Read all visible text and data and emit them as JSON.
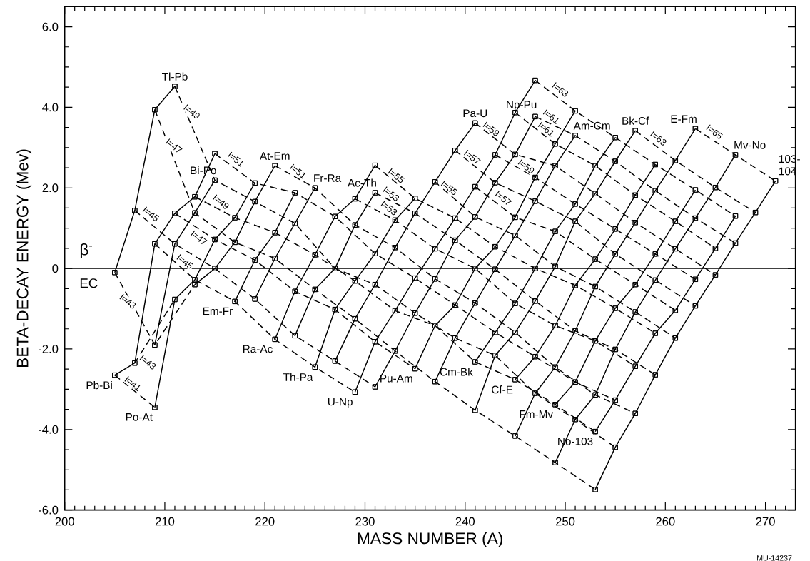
{
  "chart_data": {
    "type": "line",
    "color": "#000000",
    "marker": "square",
    "line_style": "solid",
    "xlabel": "MASS NUMBER (A)",
    "ylabel": "BETA-DECAY ENERGY (Mev)",
    "xlim": [
      200,
      273
    ],
    "ylim": [
      -6.0,
      6.5
    ],
    "xticks": [
      200,
      210,
      220,
      230,
      240,
      250,
      260,
      270,
      {
        "value": 201,
        "label": null
      },
      {
        "value": 202,
        "label": null
      },
      {
        "value": 203,
        "label": null
      },
      {
        "value": 204,
        "label": null
      },
      {
        "value": 205,
        "label": null
      },
      {
        "value": 206,
        "label": null
      },
      {
        "value": 207,
        "label": null
      },
      {
        "value": 208,
        "label": null
      },
      {
        "value": 209,
        "label": null
      },
      {
        "value": 211,
        "label": null
      },
      {
        "value": 212,
        "label": null
      },
      {
        "value": 213,
        "label": null
      },
      {
        "value": 214,
        "label": null
      },
      {
        "value": 215,
        "label": null
      },
      {
        "value": 216,
        "label": null
      },
      {
        "value": 217,
        "label": null
      },
      {
        "value": 218,
        "label": null
      },
      {
        "value": 219,
        "label": null
      },
      {
        "value": 221,
        "label": null
      },
      {
        "value": 222,
        "label": null
      },
      {
        "value": 223,
        "label": null
      },
      {
        "value": 224,
        "label": null
      },
      {
        "value": 225,
        "label": null
      },
      {
        "value": 226,
        "label": null
      },
      {
        "value": 227,
        "label": null
      },
      {
        "value": 228,
        "label": null
      },
      {
        "value": 229,
        "label": null
      },
      {
        "value": 231,
        "label": null
      },
      {
        "value": 232,
        "label": null
      },
      {
        "value": 233,
        "label": null
      },
      {
        "value": 234,
        "label": null
      },
      {
        "value": 235,
        "label": null
      },
      {
        "value": 236,
        "label": null
      },
      {
        "value": 237,
        "label": null
      },
      {
        "value": 238,
        "label": null
      },
      {
        "value": 239,
        "label": null
      },
      {
        "value": 241,
        "label": null
      },
      {
        "value": 242,
        "label": null
      },
      {
        "value": 243,
        "label": null
      },
      {
        "value": 244,
        "label": null
      },
      {
        "value": 245,
        "label": null
      },
      {
        "value": 246,
        "label": null
      },
      {
        "value": 247,
        "label": null
      },
      {
        "value": 248,
        "label": null
      },
      {
        "value": 249,
        "label": null
      },
      {
        "value": 251,
        "label": null
      },
      {
        "value": 252,
        "label": null
      },
      {
        "value": 253,
        "label": null
      },
      {
        "value": 254,
        "label": null
      },
      {
        "value": 255,
        "label": null
      },
      {
        "value": 256,
        "label": null
      },
      {
        "value": 257,
        "label": null
      },
      {
        "value": 258,
        "label": null
      },
      {
        "value": 259,
        "label": null
      },
      {
        "value": 261,
        "label": null
      },
      {
        "value": 262,
        "label": null
      },
      {
        "value": 263,
        "label": null
      },
      {
        "value": 264,
        "label": null
      },
      {
        "value": 265,
        "label": null
      },
      {
        "value": 266,
        "label": null
      },
      {
        "value": 267,
        "label": null
      },
      {
        "value": 268,
        "label": null
      },
      {
        "value": 269,
        "label": null
      },
      {
        "value": 271,
        "label": null
      },
      {
        "value": 272,
        "label": null
      }
    ],
    "yticks": [
      {
        "value": -6,
        "label": "-6.0"
      },
      {
        "value": -4,
        "label": "-4.0"
      },
      {
        "value": -2,
        "label": "-2.0"
      },
      0,
      {
        "value": 2,
        "label": "2.0"
      },
      {
        "value": 4,
        "label": "4.0"
      },
      {
        "value": 6,
        "label": "6.0"
      },
      {
        "value": -5.5,
        "label": null
      },
      {
        "value": -5,
        "label": null
      },
      {
        "value": -4.5,
        "label": null
      },
      {
        "value": -3.5,
        "label": null
      },
      {
        "value": -3,
        "label": null
      },
      {
        "value": -2.5,
        "label": null
      },
      {
        "value": -1.5,
        "label": null
      },
      {
        "value": -1,
        "label": null
      },
      {
        "value": -0.5,
        "label": null
      },
      {
        "value": 0.5,
        "label": null
      },
      {
        "value": 1,
        "label": null
      },
      {
        "value": 1.5,
        "label": null
      },
      {
        "value": 2.5,
        "label": null
      },
      {
        "value": 3,
        "label": null
      },
      {
        "value": 3.5,
        "label": null
      },
      {
        "value": 4.5,
        "label": null
      },
      {
        "value": 5,
        "label": null
      },
      {
        "value": 5.5,
        "label": null
      }
    ],
    "ref_lines": [
      {
        "axis": "y",
        "value": 0
      }
    ],
    "series": [
      {
        "x": [
          205,
          209
        ],
        "values": [
          -2.65,
          -3.45
        ],
        "line_style": "dashed"
      },
      {
        "x": [
          207,
          211
        ],
        "values": [
          -2.35,
          -0.77
        ],
        "line_style": "dashed"
      },
      {
        "x": [
          209,
          213,
          217,
          221,
          225,
          229
        ],
        "values": [
          0.61,
          -0.28,
          -0.82,
          -1.76,
          -2.45,
          -3.07
        ],
        "line_style": "dashed"
      },
      {
        "x": [
          211,
          215,
          219,
          223,
          227,
          231,
          235
        ],
        "values": [
          1.37,
          0.72,
          0.21,
          -0.57,
          -1.02,
          -1.82,
          -2.49
        ],
        "line_style": "dashed"
      },
      {
        "x": [
          213,
          217,
          221,
          225,
          229,
          233,
          237,
          241,
          245,
          249,
          253
        ],
        "values": [
          1.78,
          1.26,
          0.89,
          0.34,
          -0.31,
          -1.05,
          -1.42,
          -2.32,
          -2.76,
          -3.38,
          -4.05
        ],
        "line_style": "dashed"
      },
      {
        "x": [
          215,
          219,
          223,
          227,
          231,
          235,
          239,
          243,
          247,
          251,
          255
        ],
        "values": [
          2.85,
          2.12,
          1.88,
          1.29,
          0.37,
          -0.24,
          -0.91,
          -1.59,
          -2.19,
          -2.82,
          -3.27
        ],
        "line_style": "dashed"
      },
      {
        "x": [
          229,
          233,
          237,
          241,
          245,
          249,
          253,
          257
        ],
        "values": [
          1.73,
          1.2,
          0.49,
          0.0,
          -0.87,
          -1.42,
          -1.8,
          -2.43
        ],
        "line_style": "dashed"
      },
      {
        "x": [
          231,
          235,
          239,
          243,
          247,
          251,
          255,
          259
        ],
        "values": [
          2.56,
          1.74,
          1.25,
          0.54,
          0.0,
          -0.42,
          -0.99,
          -1.61
        ],
        "line_style": "dashed"
      },
      {
        "x": [
          241,
          245,
          249,
          253,
          257,
          261
        ],
        "values": [
          2.03,
          1.27,
          0.92,
          0.23,
          -0.4,
          -1.04
        ],
        "line_style": "dashed"
      },
      {
        "x": [
          243,
          247,
          251,
          255,
          259,
          263
        ],
        "values": [
          2.82,
          2.26,
          1.6,
          0.98,
          0.36,
          -0.27
        ],
        "line_style": "dashed"
      },
      {
        "x": [
          245,
          249,
          253,
          257,
          261,
          265
        ],
        "values": [
          3.87,
          3.09,
          2.55,
          1.82,
          1.17,
          0.5
        ],
        "line_style": "dashed"
      },
      {
        "x": [
          247,
          251,
          255,
          259,
          263,
          267
        ],
        "values": [
          4.67,
          3.91,
          3.25,
          2.58,
          1.95,
          1.3
        ],
        "line_style": "dashed"
      },
      {
        "x": [
          205,
          209,
          213
        ],
        "values": [
          -0.1,
          -1.9,
          -0.4
        ],
        "line_style": "dashed"
      },
      {
        "x": [
          207,
          211,
          215,
          219,
          223,
          227,
          231
        ],
        "values": [
          1.44,
          0.61,
          0.0,
          -0.76,
          -1.67,
          -2.3,
          -2.94
        ],
        "line_style": "dashed"
      },
      {
        "x": [
          209,
          213,
          217,
          221,
          225,
          229,
          233,
          237,
          241,
          245,
          249,
          253
        ],
        "values": [
          3.94,
          1.38,
          0.65,
          0.25,
          -0.52,
          -1.25,
          -2.05,
          -2.81,
          -3.52,
          -4.16,
          -4.82,
          -5.49
        ],
        "line_style": "dashed"
      },
      {
        "x": [
          211,
          215,
          219,
          223,
          227,
          231,
          235,
          239,
          243,
          247,
          251,
          255
        ],
        "values": [
          4.52,
          2.19,
          1.66,
          1.12,
          0.0,
          -0.4,
          -1.11,
          -1.73,
          -2.16,
          -3.1,
          -3.75,
          -4.44
        ],
        "line_style": "dashed"
      },
      {
        "x": [
          221,
          225,
          229,
          233,
          237,
          241,
          245,
          249,
          253,
          257
        ],
        "values": [
          2.55,
          2.0,
          1.08,
          0.52,
          -0.26,
          -0.86,
          -1.59,
          -2.45,
          -3.14,
          -3.6
        ],
        "line_style": "dashed"
      },
      {
        "x": [
          231,
          235,
          239,
          243,
          247,
          251,
          255,
          259
        ],
        "values": [
          1.88,
          1.37,
          0.7,
          -0.02,
          -0.81,
          -1.55,
          -2.01,
          -2.64
        ],
        "line_style": "dashed"
      },
      {
        "x": [
          237,
          241,
          245,
          249,
          253,
          257,
          261
        ],
        "values": [
          2.15,
          1.28,
          0.82,
          0.05,
          -0.45,
          -1.08,
          -1.73
        ],
        "line_style": "dashed"
      },
      {
        "x": [
          239,
          243,
          247,
          251,
          255,
          259,
          263
        ],
        "values": [
          2.93,
          2.13,
          1.67,
          1.17,
          0.36,
          -0.29,
          -0.93
        ],
        "line_style": "dashed"
      },
      {
        "x": [
          241,
          245,
          249,
          253,
          257,
          261,
          265
        ],
        "values": [
          3.61,
          2.83,
          2.55,
          1.86,
          1.14,
          0.49,
          -0.16
        ],
        "line_style": "dashed"
      },
      {
        "x": [
          247,
          251,
          255,
          259,
          263,
          267
        ],
        "values": [
          3.77,
          3.3,
          2.66,
          1.93,
          1.25,
          0.63
        ],
        "line_style": "dashed"
      },
      {
        "x": [
          257,
          261,
          265,
          269
        ],
        "values": [
          3.42,
          2.68,
          2.01,
          1.39
        ],
        "line_style": "dashed"
      },
      {
        "x": [
          263,
          267,
          271
        ],
        "values": [
          3.47,
          2.82,
          2.17
        ],
        "line_style": "dashed"
      },
      {
        "name": "Tl-Pb",
        "x": [
          205,
          207,
          209,
          211
        ],
        "values": [
          -0.1,
          1.44,
          3.94,
          4.52
        ]
      },
      {
        "name": "Pb-Bi",
        "x": [
          205,
          207,
          209,
          211,
          213,
          215
        ],
        "values": [
          -2.65,
          -2.35,
          0.61,
          1.37,
          1.78,
          2.85
        ]
      },
      {
        "name": "Bi-Po",
        "x": [
          209,
          211,
          213,
          215
        ],
        "values": [
          -1.9,
          0.61,
          1.38,
          2.19
        ]
      },
      {
        "name": "Po-At",
        "x": [
          209,
          211,
          213,
          215,
          217,
          219
        ],
        "values": [
          -3.45,
          -0.77,
          -0.28,
          0.72,
          1.26,
          2.12
        ]
      },
      {
        "name": "At-Em",
        "x": [
          213,
          215,
          217,
          219,
          221
        ],
        "values": [
          -0.4,
          0.0,
          0.65,
          1.66,
          2.55
        ]
      },
      {
        "name": "Em-Fr",
        "x": [
          217,
          219,
          221,
          223
        ],
        "values": [
          -0.82,
          0.21,
          0.89,
          1.88
        ]
      },
      {
        "name": "Fr-Ra",
        "x": [
          219,
          221,
          223,
          225
        ],
        "values": [
          -0.76,
          0.25,
          1.12,
          2.0
        ]
      },
      {
        "name": "Ra-Ac",
        "x": [
          221,
          223,
          225,
          227,
          229,
          231
        ],
        "values": [
          -1.76,
          -0.57,
          0.34,
          1.29,
          1.73,
          2.56
        ]
      },
      {
        "name": "Ac-Th",
        "x": [
          223,
          225,
          227,
          229,
          231
        ],
        "values": [
          -1.67,
          -0.52,
          0.0,
          1.08,
          1.88
        ]
      },
      {
        "name": "Th-Pa",
        "x": [
          225,
          227,
          229,
          231,
          233,
          235
        ],
        "values": [
          -2.45,
          -1.02,
          -0.31,
          0.37,
          1.2,
          1.74
        ]
      },
      {
        "name": "Pa-U",
        "x": [
          227,
          229,
          231,
          233,
          235,
          237,
          239,
          241
        ],
        "values": [
          -2.3,
          -1.25,
          -0.4,
          0.52,
          1.37,
          2.15,
          2.93,
          3.61
        ]
      },
      {
        "name": "U-Np",
        "x": [
          229,
          231,
          233,
          235,
          237,
          239,
          241,
          243,
          245,
          247
        ],
        "values": [
          -3.07,
          -1.82,
          -1.05,
          -0.24,
          0.49,
          1.25,
          2.03,
          2.82,
          3.87,
          4.67
        ]
      },
      {
        "name": "Np-Pu",
        "x": [
          231,
          233,
          235,
          237,
          239,
          241,
          243,
          245,
          247
        ],
        "values": [
          -2.94,
          -2.05,
          -1.11,
          -0.26,
          0.7,
          1.28,
          2.13,
          2.83,
          3.77
        ]
      },
      {
        "name": "Pu-Am",
        "x": [
          235,
          237,
          239,
          241,
          243,
          245,
          247,
          249,
          251
        ],
        "values": [
          -2.49,
          -1.42,
          -0.91,
          0.0,
          0.54,
          1.27,
          2.26,
          3.09,
          3.91
        ]
      },
      {
        "name": "Am-Cm",
        "x": [
          237,
          239,
          241,
          243,
          245,
          247,
          249,
          251
        ],
        "values": [
          -2.81,
          -1.73,
          -0.86,
          -0.02,
          0.82,
          1.67,
          2.55,
          3.3
        ]
      },
      {
        "name": "Cm-Bk",
        "x": [
          241,
          243,
          245,
          247,
          249,
          251,
          253,
          255
        ],
        "values": [
          -2.32,
          -1.59,
          -0.87,
          0.0,
          0.92,
          1.6,
          2.55,
          3.25
        ]
      },
      {
        "name": "Bk-Cf",
        "x": [
          241,
          243,
          245,
          247,
          249,
          251,
          253,
          255,
          257
        ],
        "values": [
          -3.52,
          -2.16,
          -1.59,
          -0.81,
          0.05,
          1.17,
          1.86,
          2.66,
          3.42
        ]
      },
      {
        "name": "Cf-E",
        "x": [
          245,
          247,
          249,
          251,
          253,
          255,
          257,
          259
        ],
        "values": [
          -2.76,
          -2.19,
          -1.42,
          -0.42,
          0.23,
          0.98,
          1.82,
          2.58
        ]
      },
      {
        "name": "E-Fm",
        "x": [
          245,
          247,
          249,
          251,
          253,
          255,
          257,
          259,
          261,
          263
        ],
        "values": [
          -4.16,
          -3.1,
          -2.45,
          -1.55,
          -0.45,
          0.36,
          1.14,
          1.93,
          2.68,
          3.47
        ]
      },
      {
        "name": "Fm-Mv",
        "x": [
          249,
          251,
          253,
          255,
          257,
          259,
          261,
          263
        ],
        "values": [
          -3.38,
          -2.82,
          -1.8,
          -0.99,
          -0.4,
          0.36,
          1.17,
          1.95
        ]
      },
      {
        "name": "Mv-No",
        "x": [
          249,
          251,
          253,
          255,
          257,
          259,
          261,
          263,
          265,
          267
        ],
        "values": [
          -4.82,
          -3.75,
          -3.14,
          -2.01,
          -1.08,
          -0.29,
          0.49,
          1.25,
          2.01,
          2.82
        ]
      },
      {
        "name": "No-103",
        "x": [
          253,
          255,
          257,
          259,
          261,
          263,
          265,
          267
        ],
        "values": [
          -4.05,
          -3.27,
          -2.43,
          -1.61,
          -1.04,
          -0.27,
          0.5,
          1.3
        ]
      },
      {
        "name": "103-104",
        "x": [
          253,
          255,
          257,
          259,
          261,
          263,
          265,
          267,
          269,
          271
        ],
        "values": [
          -5.49,
          -4.44,
          -3.6,
          -2.64,
          -1.73,
          -0.93,
          -0.16,
          0.63,
          1.39,
          2.17
        ]
      }
    ],
    "annotations": [
      "β$^{-}$",
      "EC",
      "MU-14237",
      {
        "text": "I=43",
        "x": 206.3,
        "y": -0.82
      },
      {
        "text": "I=41",
        "x": 206.8,
        "y": -2.86
      },
      {
        "text": "I=43",
        "x": 208.3,
        "y": -2.33
      },
      {
        "text": "I=45",
        "x": 208.6,
        "y": 1.35
      },
      {
        "text": "I=45",
        "x": 212.0,
        "y": 0.17
      },
      {
        "text": "I=47",
        "x": 210.9,
        "y": 3.04
      },
      {
        "text": "I=47",
        "x": 213.4,
        "y": 0.76
      },
      {
        "text": "I=49",
        "x": 212.7,
        "y": 3.89
      },
      {
        "text": "I=49",
        "x": 215.6,
        "y": 1.65
      },
      {
        "text": "I=51",
        "x": 217.1,
        "y": 2.71
      },
      {
        "text": "I=51",
        "x": 223.3,
        "y": 2.41
      },
      {
        "text": "I=55",
        "x": 233.1,
        "y": 2.3
      },
      {
        "text": "I=53",
        "x": 232.6,
        "y": 1.85
      },
      {
        "text": "I=53",
        "x": 232.4,
        "y": 1.5
      },
      {
        "text": "I=55",
        "x": 238.4,
        "y": 2.0
      },
      {
        "text": "I=57",
        "x": 240.7,
        "y": 2.76
      },
      {
        "text": "I=59",
        "x": 242.6,
        "y": 3.46
      },
      {
        "text": "I=57",
        "x": 243.8,
        "y": 1.74
      },
      {
        "text": "I=59",
        "x": 246.1,
        "y": 2.53
      },
      {
        "text": "I=61",
        "x": 248.6,
        "y": 3.77
      },
      {
        "text": "I=61",
        "x": 248.1,
        "y": 3.46
      },
      {
        "text": "I=63",
        "x": 249.5,
        "y": 4.44
      },
      {
        "text": "I=63",
        "x": 259.3,
        "y": 3.23
      },
      {
        "text": "I=65",
        "x": 264.9,
        "y": 3.39
      }
    ]
  }
}
